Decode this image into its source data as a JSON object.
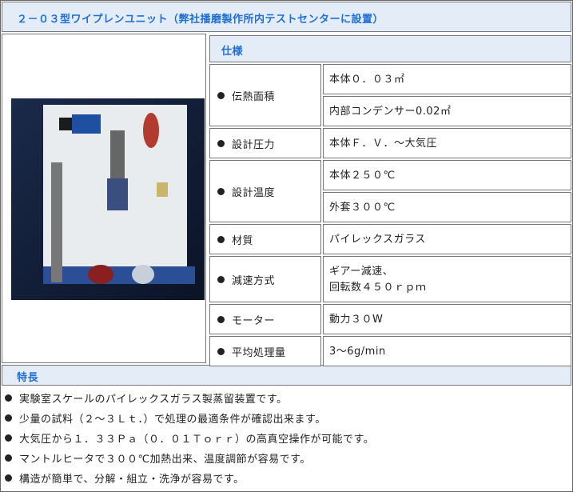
{
  "title": "２－０３型ワイプレンユニット（弊社播磨製作所内テストセンターに設置）",
  "spec": {
    "heading": "仕様",
    "rows": [
      {
        "label": "伝熱面積",
        "values": [
          [
            "本体０．０３㎡"
          ],
          [
            "内部コンデンサー0.02㎡"
          ]
        ]
      },
      {
        "label": "設計圧力",
        "values": [
          [
            "本体Ｆ．Ｖ．～大気圧"
          ]
        ]
      },
      {
        "label": "設計温度",
        "values": [
          [
            "本体２５０℃"
          ],
          [
            "外套３００℃"
          ]
        ]
      },
      {
        "label": "材質",
        "values": [
          [
            "パイレックスガラス"
          ]
        ]
      },
      {
        "label": "減速方式",
        "values": [
          [
            "ギアー減速、",
            "回転数４５０ｒｐｍ"
          ]
        ]
      },
      {
        "label": "モーター",
        "values": [
          [
            "動力３０W"
          ]
        ]
      },
      {
        "label": "平均処理量",
        "values": [
          [
            "3〜6g/min"
          ]
        ]
      }
    ]
  },
  "features": {
    "heading": "特長",
    "items": [
      "実験室スケールのパイレックスガラス製蒸留装置です。",
      "少量の試料（２～３Ｌｔ．）で処理の最適条件が確認出来ます。",
      "大気圧から１．３３Ｐａ（０．０１Ｔｏｒｒ）の高真空操作が可能です。",
      "マントルヒータで３００℃加熱出来、温度調節が容易です。",
      "構造が簡単で、分解・組立・洗浄が容易です。"
    ]
  }
}
